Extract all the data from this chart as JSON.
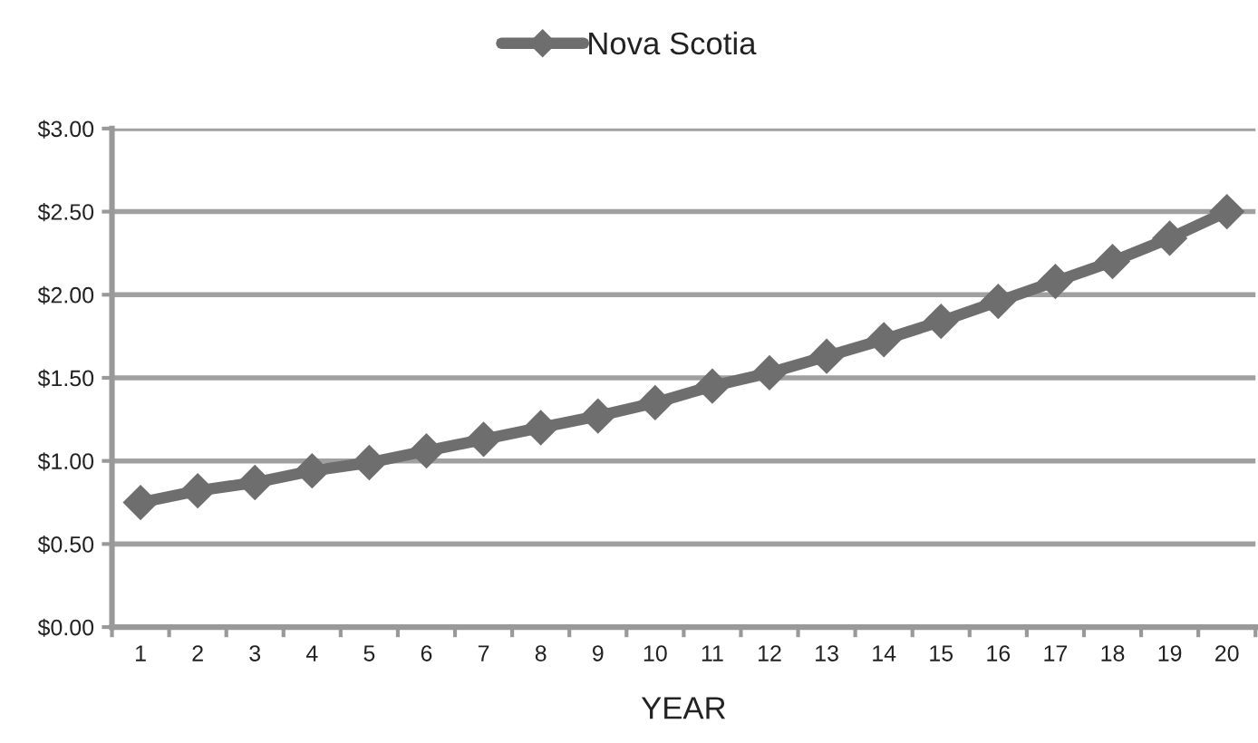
{
  "chart_data": {
    "type": "line",
    "xlabel": "YEAR",
    "categories": [
      "1",
      "2",
      "3",
      "4",
      "5",
      "6",
      "7",
      "8",
      "9",
      "10",
      "11",
      "12",
      "13",
      "14",
      "15",
      "16",
      "17",
      "18",
      "19",
      "20"
    ],
    "series": [
      {
        "name": "Nova Scotia",
        "color": "#6e6e6e",
        "values": [
          0.75,
          0.82,
          0.87,
          0.94,
          0.99,
          1.06,
          1.13,
          1.2,
          1.27,
          1.35,
          1.45,
          1.53,
          1.63,
          1.73,
          1.84,
          1.96,
          2.08,
          2.2,
          2.34,
          2.5
        ]
      }
    ],
    "ylim": [
      0,
      3
    ],
    "yticks": [
      {
        "value": 0,
        "label": "$0.00"
      },
      {
        "value": 0.5,
        "label": "$0.50"
      },
      {
        "value": 1,
        "label": "$1.00"
      },
      {
        "value": 1.5,
        "label": "$1.50"
      },
      {
        "value": 2,
        "label": "$2.00"
      },
      {
        "value": 2.5,
        "label": "$2.50"
      },
      {
        "value": 3,
        "label": "$3.00"
      }
    ],
    "grid": "y",
    "legend": "top",
    "marker": "diamond",
    "line_style": "solid"
  }
}
